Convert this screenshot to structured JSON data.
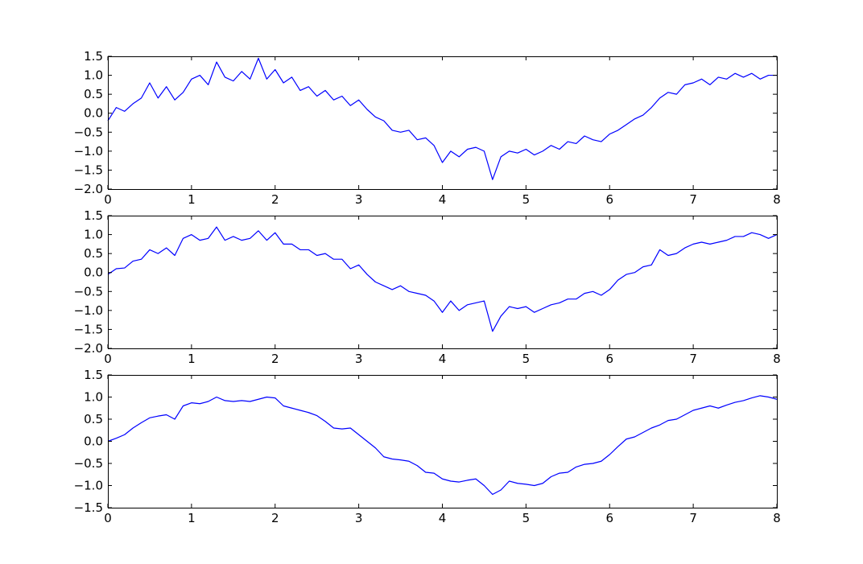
{
  "chart_data": [
    {
      "type": "line",
      "title": "",
      "xlabel": "",
      "ylabel": "",
      "xlim": [
        0,
        8
      ],
      "ylim": [
        -2.0,
        1.5
      ],
      "xticks": [
        0,
        1,
        2,
        3,
        4,
        5,
        6,
        7,
        8
      ],
      "xtick_labels": [
        "0",
        "1",
        "2",
        "3",
        "4",
        "5",
        "6",
        "7",
        "8"
      ],
      "yticks": [
        -2.0,
        -1.5,
        -1.0,
        -0.5,
        0.0,
        0.5,
        1.0,
        1.5
      ],
      "ytick_labels": [
        "−2.0",
        "−1.5",
        "−1.0",
        "−0.5",
        "0.0",
        "0.5",
        "1.0",
        "1.5"
      ],
      "grid": false,
      "series": [
        {
          "color": "#0000ff",
          "x": [
            0,
            0.1,
            0.2,
            0.3,
            0.4,
            0.5,
            0.6,
            0.7,
            0.8,
            0.9,
            1.0,
            1.1,
            1.2,
            1.3,
            1.4,
            1.5,
            1.6,
            1.7,
            1.8,
            1.9,
            2.0,
            2.1,
            2.2,
            2.3,
            2.4,
            2.5,
            2.6,
            2.7,
            2.8,
            2.9,
            3.0,
            3.1,
            3.2,
            3.3,
            3.4,
            3.5,
            3.6,
            3.7,
            3.8,
            3.9,
            4.0,
            4.1,
            4.2,
            4.3,
            4.4,
            4.5,
            4.6,
            4.7,
            4.8,
            4.9,
            5.0,
            5.1,
            5.2,
            5.3,
            5.4,
            5.5,
            5.6,
            5.7,
            5.8,
            5.9,
            6.0,
            6.1,
            6.2,
            6.3,
            6.4,
            6.5,
            6.6,
            6.7,
            6.8,
            6.9,
            7.0,
            7.1,
            7.2,
            7.3,
            7.4,
            7.5,
            7.6,
            7.7,
            7.8,
            7.9,
            8.0
          ],
          "y": [
            -0.2,
            0.15,
            0.05,
            0.25,
            0.4,
            0.8,
            0.4,
            0.7,
            0.35,
            0.55,
            0.9,
            1.0,
            0.75,
            1.35,
            0.95,
            0.85,
            1.1,
            0.9,
            1.45,
            0.9,
            1.15,
            0.8,
            0.95,
            0.6,
            0.7,
            0.45,
            0.6,
            0.35,
            0.45,
            0.2,
            0.35,
            0.1,
            -0.1,
            -0.2,
            -0.45,
            -0.5,
            -0.45,
            -0.7,
            -0.65,
            -0.85,
            -1.3,
            -1.0,
            -1.15,
            -0.95,
            -0.9,
            -1.0,
            -1.75,
            -1.15,
            -1.0,
            -1.05,
            -0.95,
            -1.1,
            -1.0,
            -0.85,
            -0.95,
            -0.75,
            -0.8,
            -0.6,
            -0.7,
            -0.75,
            -0.55,
            -0.45,
            -0.3,
            -0.15,
            -0.05,
            0.15,
            0.4,
            0.55,
            0.5,
            0.75,
            0.8,
            0.9,
            0.75,
            0.95,
            0.9,
            1.05,
            0.95,
            1.05,
            0.9,
            1.0,
            1.0
          ]
        }
      ]
    },
    {
      "type": "line",
      "title": "",
      "xlabel": "",
      "ylabel": "",
      "xlim": [
        0,
        8
      ],
      "ylim": [
        -2.0,
        1.5
      ],
      "xticks": [
        0,
        1,
        2,
        3,
        4,
        5,
        6,
        7,
        8
      ],
      "xtick_labels": [
        "0",
        "1",
        "2",
        "3",
        "4",
        "5",
        "6",
        "7",
        "8"
      ],
      "yticks": [
        -2.0,
        -1.5,
        -1.0,
        -0.5,
        0.0,
        0.5,
        1.0,
        1.5
      ],
      "ytick_labels": [
        "−2.0",
        "−1.5",
        "−1.0",
        "−0.5",
        "0.0",
        "0.5",
        "1.0",
        "1.5"
      ],
      "grid": false,
      "series": [
        {
          "color": "#0000ff",
          "x": [
            0,
            0.1,
            0.2,
            0.3,
            0.4,
            0.5,
            0.6,
            0.7,
            0.8,
            0.9,
            1.0,
            1.1,
            1.2,
            1.3,
            1.4,
            1.5,
            1.6,
            1.7,
            1.8,
            1.9,
            2.0,
            2.1,
            2.2,
            2.3,
            2.4,
            2.5,
            2.6,
            2.7,
            2.8,
            2.9,
            3.0,
            3.1,
            3.2,
            3.3,
            3.4,
            3.5,
            3.6,
            3.7,
            3.8,
            3.9,
            4.0,
            4.1,
            4.2,
            4.3,
            4.4,
            4.5,
            4.6,
            4.7,
            4.8,
            4.9,
            5.0,
            5.1,
            5.2,
            5.3,
            5.4,
            5.5,
            5.6,
            5.7,
            5.8,
            5.9,
            6.0,
            6.1,
            6.2,
            6.3,
            6.4,
            6.5,
            6.6,
            6.7,
            6.8,
            6.9,
            7.0,
            7.1,
            7.2,
            7.3,
            7.4,
            7.5,
            7.6,
            7.7,
            7.8,
            7.9,
            8.0
          ],
          "y": [
            -0.05,
            0.1,
            0.12,
            0.3,
            0.35,
            0.6,
            0.5,
            0.65,
            0.45,
            0.9,
            1.0,
            0.85,
            0.9,
            1.2,
            0.85,
            0.95,
            0.85,
            0.9,
            1.1,
            0.85,
            1.05,
            0.75,
            0.75,
            0.6,
            0.6,
            0.45,
            0.5,
            0.35,
            0.35,
            0.1,
            0.2,
            -0.05,
            -0.25,
            -0.35,
            -0.45,
            -0.35,
            -0.5,
            -0.55,
            -0.6,
            -0.75,
            -1.05,
            -0.75,
            -1.0,
            -0.85,
            -0.8,
            -0.75,
            -1.55,
            -1.15,
            -0.9,
            -0.95,
            -0.9,
            -1.05,
            -0.95,
            -0.85,
            -0.8,
            -0.7,
            -0.7,
            -0.55,
            -0.5,
            -0.6,
            -0.45,
            -0.2,
            -0.05,
            0.0,
            0.15,
            0.2,
            0.6,
            0.45,
            0.5,
            0.65,
            0.75,
            0.8,
            0.75,
            0.8,
            0.85,
            0.95,
            0.95,
            1.05,
            1.0,
            0.9,
            1.0
          ]
        }
      ]
    },
    {
      "type": "line",
      "title": "",
      "xlabel": "",
      "ylabel": "",
      "xlim": [
        0,
        8
      ],
      "ylim": [
        -1.5,
        1.5
      ],
      "xticks": [
        0,
        1,
        2,
        3,
        4,
        5,
        6,
        7,
        8
      ],
      "xtick_labels": [
        "0",
        "1",
        "2",
        "3",
        "4",
        "5",
        "6",
        "7",
        "8"
      ],
      "yticks": [
        -1.5,
        -1.0,
        -0.5,
        0.0,
        0.5,
        1.0,
        1.5
      ],
      "ytick_labels": [
        "−1.5",
        "−1.0",
        "−0.5",
        "0.0",
        "0.5",
        "1.0",
        "1.5"
      ],
      "grid": false,
      "series": [
        {
          "color": "#0000ff",
          "x": [
            0,
            0.1,
            0.2,
            0.3,
            0.4,
            0.5,
            0.6,
            0.7,
            0.8,
            0.9,
            1.0,
            1.1,
            1.2,
            1.3,
            1.4,
            1.5,
            1.6,
            1.7,
            1.8,
            1.9,
            2.0,
            2.1,
            2.2,
            2.3,
            2.4,
            2.5,
            2.6,
            2.7,
            2.8,
            2.9,
            3.0,
            3.1,
            3.2,
            3.3,
            3.4,
            3.5,
            3.6,
            3.7,
            3.8,
            3.9,
            4.0,
            4.1,
            4.2,
            4.3,
            4.4,
            4.5,
            4.6,
            4.7,
            4.8,
            4.9,
            5.0,
            5.1,
            5.2,
            5.3,
            5.4,
            5.5,
            5.6,
            5.7,
            5.8,
            5.9,
            6.0,
            6.1,
            6.2,
            6.3,
            6.4,
            6.5,
            6.6,
            6.7,
            6.8,
            6.9,
            7.0,
            7.1,
            7.2,
            7.3,
            7.4,
            7.5,
            7.6,
            7.7,
            7.8,
            7.9,
            8.0
          ],
          "y": [
            0.0,
            0.07,
            0.15,
            0.3,
            0.42,
            0.53,
            0.57,
            0.6,
            0.5,
            0.8,
            0.87,
            0.85,
            0.9,
            1.0,
            0.92,
            0.9,
            0.92,
            0.9,
            0.95,
            1.0,
            0.98,
            0.8,
            0.75,
            0.7,
            0.65,
            0.58,
            0.45,
            0.3,
            0.28,
            0.3,
            0.15,
            0.0,
            -0.15,
            -0.35,
            -0.4,
            -0.42,
            -0.45,
            -0.55,
            -0.7,
            -0.72,
            -0.85,
            -0.9,
            -0.92,
            -0.88,
            -0.85,
            -1.0,
            -1.2,
            -1.1,
            -0.9,
            -0.95,
            -0.97,
            -1.0,
            -0.95,
            -0.8,
            -0.72,
            -0.7,
            -0.58,
            -0.52,
            -0.5,
            -0.45,
            -0.3,
            -0.12,
            0.05,
            0.1,
            0.2,
            0.3,
            0.37,
            0.47,
            0.5,
            0.6,
            0.7,
            0.75,
            0.8,
            0.75,
            0.82,
            0.88,
            0.92,
            0.98,
            1.03,
            1.0,
            0.95
          ]
        }
      ]
    }
  ]
}
